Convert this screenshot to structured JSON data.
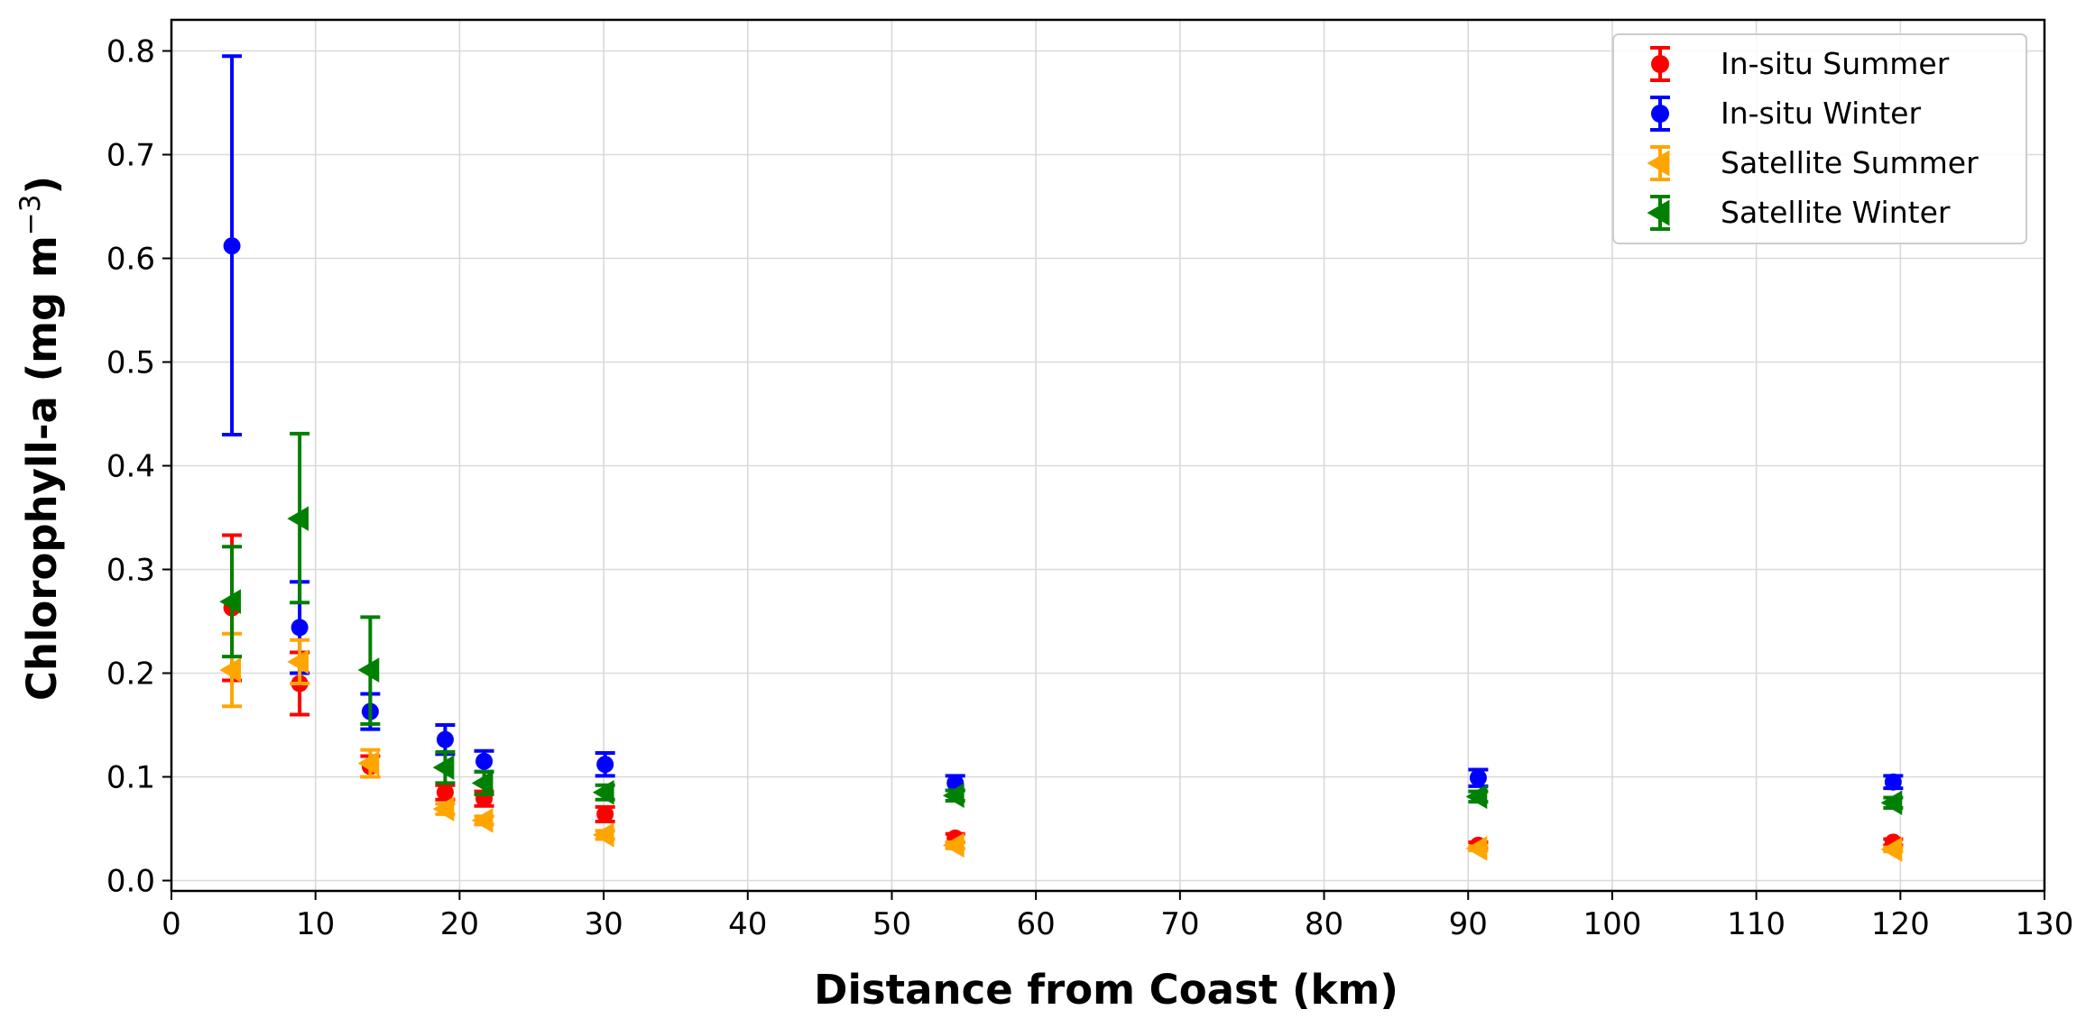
{
  "chart_data": {
    "type": "scatter",
    "title": "",
    "xlabel": "Distance from Coast (km)",
    "ylabel_main": "Chlorophyll-a (mg m",
    "ylabel_sup": "−3",
    "ylabel_close": ")",
    "xlim": [
      0,
      130
    ],
    "ylim": [
      -0.01,
      0.83
    ],
    "xticks": [
      0,
      10,
      20,
      30,
      40,
      50,
      60,
      70,
      80,
      90,
      100,
      110,
      120,
      130
    ],
    "yticks": [
      0.0,
      0.1,
      0.2,
      0.3,
      0.4,
      0.5,
      0.6,
      0.7,
      0.8
    ],
    "ytick_labels": [
      "0.0",
      "0.1",
      "0.2",
      "0.3",
      "0.4",
      "0.5",
      "0.6",
      "0.7",
      "0.8"
    ],
    "grid": true,
    "legend_position": "top-right",
    "series": [
      {
        "name": "In-situ Summer",
        "color": "#ff0000",
        "marker": "circle",
        "points": [
          {
            "x": 4.2,
            "y": 0.263,
            "lo": 0.193,
            "hi": 0.333
          },
          {
            "x": 8.9,
            "y": 0.19,
            "lo": 0.16,
            "hi": 0.22
          },
          {
            "x": 13.8,
            "y": 0.11,
            "lo": 0.1,
            "hi": 0.12
          },
          {
            "x": 19.0,
            "y": 0.085,
            "lo": 0.078,
            "hi": 0.092
          },
          {
            "x": 21.7,
            "y": 0.079,
            "lo": 0.072,
            "hi": 0.086
          },
          {
            "x": 30.1,
            "y": 0.064,
            "lo": 0.057,
            "hi": 0.071
          },
          {
            "x": 54.4,
            "y": 0.041,
            "lo": 0.037,
            "hi": 0.045
          },
          {
            "x": 90.7,
            "y": 0.034,
            "lo": 0.031,
            "hi": 0.037
          },
          {
            "x": 119.5,
            "y": 0.037,
            "lo": 0.034,
            "hi": 0.04
          }
        ]
      },
      {
        "name": "In-situ Winter",
        "color": "#0000ff",
        "marker": "circle",
        "points": [
          {
            "x": 4.2,
            "y": 0.612,
            "lo": 0.43,
            "hi": 0.795
          },
          {
            "x": 8.9,
            "y": 0.244,
            "lo": 0.2,
            "hi": 0.288
          },
          {
            "x": 13.8,
            "y": 0.163,
            "lo": 0.146,
            "hi": 0.18
          },
          {
            "x": 19.0,
            "y": 0.136,
            "lo": 0.122,
            "hi": 0.15
          },
          {
            "x": 21.7,
            "y": 0.115,
            "lo": 0.105,
            "hi": 0.125
          },
          {
            "x": 30.1,
            "y": 0.112,
            "lo": 0.101,
            "hi": 0.123
          },
          {
            "x": 54.4,
            "y": 0.094,
            "lo": 0.087,
            "hi": 0.101
          },
          {
            "x": 90.7,
            "y": 0.099,
            "lo": 0.091,
            "hi": 0.107
          },
          {
            "x": 119.5,
            "y": 0.095,
            "lo": 0.089,
            "hi": 0.101
          }
        ]
      },
      {
        "name": "Satellite Summer",
        "color": "#ffa500",
        "marker": "triangle-left",
        "points": [
          {
            "x": 4.2,
            "y": 0.203,
            "lo": 0.168,
            "hi": 0.238
          },
          {
            "x": 8.9,
            "y": 0.211,
            "lo": 0.19,
            "hi": 0.232
          },
          {
            "x": 13.8,
            "y": 0.113,
            "lo": 0.1,
            "hi": 0.126
          },
          {
            "x": 19.0,
            "y": 0.069,
            "lo": 0.064,
            "hi": 0.074
          },
          {
            "x": 21.7,
            "y": 0.058,
            "lo": 0.054,
            "hi": 0.062
          },
          {
            "x": 30.1,
            "y": 0.044,
            "lo": 0.04,
            "hi": 0.048
          },
          {
            "x": 54.4,
            "y": 0.034,
            "lo": 0.031,
            "hi": 0.037
          },
          {
            "x": 90.7,
            "y": 0.031,
            "lo": 0.029,
            "hi": 0.033
          },
          {
            "x": 119.5,
            "y": 0.03,
            "lo": 0.028,
            "hi": 0.032
          }
        ]
      },
      {
        "name": "Satellite Winter",
        "color": "#008000",
        "marker": "triangle-left",
        "points": [
          {
            "x": 4.2,
            "y": 0.269,
            "lo": 0.216,
            "hi": 0.322
          },
          {
            "x": 8.9,
            "y": 0.349,
            "lo": 0.268,
            "hi": 0.431
          },
          {
            "x": 13.8,
            "y": 0.203,
            "lo": 0.151,
            "hi": 0.254
          },
          {
            "x": 19.0,
            "y": 0.109,
            "lo": 0.094,
            "hi": 0.124
          },
          {
            "x": 21.7,
            "y": 0.094,
            "lo": 0.083,
            "hi": 0.105
          },
          {
            "x": 30.1,
            "y": 0.085,
            "lo": 0.078,
            "hi": 0.092
          },
          {
            "x": 54.4,
            "y": 0.082,
            "lo": 0.077,
            "hi": 0.087
          },
          {
            "x": 90.7,
            "y": 0.081,
            "lo": 0.076,
            "hi": 0.086
          },
          {
            "x": 119.5,
            "y": 0.075,
            "lo": 0.07,
            "hi": 0.08
          }
        ]
      }
    ]
  }
}
